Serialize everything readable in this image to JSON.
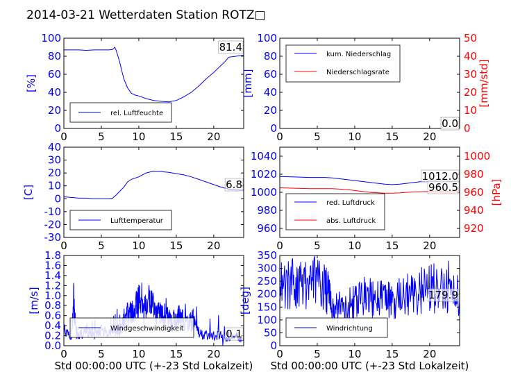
{
  "title": "2014-03-21 Wetterdaten Station ROTZ□",
  "colors": {
    "primary": "#0000ff",
    "secondary": "#ff0000",
    "axis": "#000000"
  },
  "chart_data": [
    {
      "id": "humidity",
      "type": "line",
      "xlim": [
        0,
        24
      ],
      "ylim": [
        0,
        100
      ],
      "xticks": [
        0,
        5,
        10,
        15,
        20
      ],
      "yticks": [
        0,
        20,
        40,
        60,
        80,
        100
      ],
      "ylabel": "[%]",
      "xlabel": "",
      "legend": {
        "placement": "bottom-left",
        "entries": [
          "rel. Luftfeuchte"
        ]
      },
      "current_value": "81.4",
      "series": [
        {
          "name": "rel. Luftfeuchte",
          "color": "#0000ff",
          "axis": "left",
          "x": [
            0,
            1,
            2,
            3,
            4,
            5,
            6,
            6.5,
            6.8,
            7,
            7.4,
            8,
            8.5,
            9,
            9.5,
            10,
            11,
            12,
            13,
            14,
            15,
            16,
            17,
            18,
            19,
            20,
            20.5,
            21,
            21.5,
            22,
            23,
            24
          ],
          "y": [
            87,
            87,
            87,
            86.5,
            87,
            87,
            87,
            87.5,
            90,
            86,
            75,
            55,
            45,
            39,
            37,
            36,
            33,
            31,
            30,
            29.5,
            31,
            35,
            40,
            47,
            55,
            62,
            66,
            70,
            74,
            79,
            80,
            81.4
          ]
        }
      ]
    },
    {
      "id": "precipitation",
      "type": "line",
      "xlim": [
        0,
        24
      ],
      "ylim": [
        0,
        100
      ],
      "y2lim": [
        0,
        50
      ],
      "xticks": [
        0,
        5,
        10,
        15,
        20
      ],
      "yticks": [
        0,
        20,
        40,
        60,
        80,
        100
      ],
      "y2ticks": [
        0,
        10,
        20,
        30,
        40,
        50
      ],
      "ylabel": "[mm]",
      "y2label": "[mm/std]",
      "xlabel": "",
      "legend": {
        "placement": "top-left",
        "entries": [
          "kum. Niederschlag",
          "Niederschlagsrate"
        ]
      },
      "current_values": [
        "0.0",
        "0.0"
      ],
      "series": [
        {
          "name": "kum. Niederschlag",
          "color": "#0000ff",
          "axis": "left",
          "x": [
            0,
            24
          ],
          "y": [
            0,
            0
          ]
        },
        {
          "name": "Niederschlagsrate",
          "color": "#ff0000",
          "axis": "right",
          "x": [
            0,
            24
          ],
          "y": [
            0,
            0
          ]
        }
      ]
    },
    {
      "id": "temperature",
      "type": "line",
      "xlim": [
        0,
        24
      ],
      "ylim": [
        -30,
        40
      ],
      "xticks": [
        0,
        5,
        10,
        15,
        20
      ],
      "yticks": [
        -30,
        -20,
        -10,
        0,
        10,
        20,
        30,
        40
      ],
      "ylabel": "[C]",
      "xlabel": "",
      "legend": {
        "placement": "bottom-left",
        "entries": [
          "Lufttemperatur"
        ]
      },
      "current_value": "6.8",
      "series": [
        {
          "name": "Lufttemperatur",
          "color": "#0000ff",
          "axis": "left",
          "x": [
            0,
            1,
            2,
            3,
            4,
            5,
            6,
            6.5,
            7,
            7.5,
            8,
            8.5,
            9,
            10,
            11,
            12,
            13,
            14,
            15,
            16,
            17,
            18,
            19,
            20,
            21,
            22,
            23,
            24
          ],
          "y": [
            1.5,
            1,
            0.5,
            0.5,
            0,
            0,
            0,
            0.5,
            3,
            6,
            9,
            13,
            15,
            17,
            20,
            21.5,
            21,
            20.5,
            19.5,
            18.5,
            17,
            15,
            13,
            11,
            9,
            7.5,
            6.8,
            6.8
          ]
        }
      ]
    },
    {
      "id": "pressure",
      "type": "line",
      "xlim": [
        0,
        24
      ],
      "ylim": [
        950,
        1050
      ],
      "y2lim": [
        910,
        1010
      ],
      "xticks": [
        0,
        5,
        10,
        15,
        20
      ],
      "yticks": [
        960,
        980,
        1000,
        1020,
        1040
      ],
      "y2ticks": [
        920,
        940,
        960,
        980,
        1000
      ],
      "ylabel": "",
      "y2label": "[hPa]",
      "xlabel": "",
      "legend": {
        "placement": "bottom-left",
        "entries": [
          "red. Luftdruck",
          "abs. Luftdruck"
        ]
      },
      "current_values": [
        "1012.0",
        "960.5"
      ],
      "series": [
        {
          "name": "red. Luftdruck",
          "color": "#0000ff",
          "axis": "left",
          "x": [
            0,
            2,
            4,
            6,
            7,
            8,
            9,
            10,
            11,
            12,
            13,
            14,
            15,
            16,
            17,
            18,
            19,
            20,
            21,
            22,
            23,
            24
          ],
          "y": [
            1017.5,
            1017,
            1016.5,
            1016.5,
            1016,
            1015,
            1014,
            1013,
            1012,
            1011,
            1010,
            1009,
            1008.5,
            1009,
            1010,
            1011,
            1012,
            1012.3,
            1012,
            1012,
            1012,
            1012
          ]
        },
        {
          "name": "abs. Luftdruck",
          "color": "#ff0000",
          "axis": "right",
          "x": [
            0,
            2,
            4,
            6,
            7,
            8,
            9,
            10,
            11,
            12,
            13,
            14,
            15,
            16,
            17,
            18,
            19,
            20,
            21,
            22,
            23,
            24
          ],
          "y": [
            965,
            964.5,
            964,
            964,
            964,
            963.5,
            963,
            962,
            961,
            960,
            959.5,
            959,
            959,
            959.3,
            960,
            960.5,
            960.7,
            960.8,
            960.5,
            960.5,
            960.5,
            960.5
          ]
        }
      ]
    },
    {
      "id": "windspeed",
      "type": "line",
      "xlim": [
        0,
        24
      ],
      "ylim": [
        0,
        1.8
      ],
      "xticks": [
        0,
        5,
        10,
        15,
        20
      ],
      "yticks": [
        0.0,
        0.2,
        0.4,
        0.6,
        0.8,
        1.0,
        1.2,
        1.4,
        1.6,
        1.8
      ],
      "ylabel": "[m/s]",
      "xlabel": "Std 00:00:00 UTC (+-23 Std Lokalzeit)",
      "legend": {
        "placement": "bottom-left",
        "entries": [
          "Windgeschwindigkeit"
        ]
      },
      "current_value": "0.1",
      "series": [
        {
          "name": "Windgeschwindigkeit",
          "color": "#0000ff",
          "axis": "left",
          "noise": true,
          "x": [
            0,
            1,
            1.3,
            1.6,
            2,
            3,
            4,
            5,
            6,
            6.5,
            7,
            7.5,
            8,
            8.5,
            9,
            9.5,
            10,
            10.5,
            11,
            11.5,
            12,
            12.5,
            13,
            13.5,
            14,
            14.5,
            15,
            15.5,
            16,
            16.5,
            17,
            17.5,
            18,
            19,
            20,
            21,
            22,
            23,
            24
          ],
          "y": [
            0.3,
            0.2,
            0.9,
            0.3,
            0.2,
            0.3,
            0.2,
            0.3,
            0.25,
            0.3,
            0.3,
            0.3,
            0.5,
            0.7,
            0.6,
            0.8,
            0.9,
            0.8,
            0.7,
            0.9,
            0.7,
            0.6,
            0.6,
            0.5,
            0.6,
            0.5,
            0.5,
            0.6,
            0.5,
            0.4,
            0.5,
            0.6,
            0.3,
            0.2,
            0.2,
            0.2,
            0.1,
            0.2,
            0.1
          ]
        }
      ]
    },
    {
      "id": "winddirection",
      "type": "line",
      "xlim": [
        0,
        24
      ],
      "ylim": [
        0,
        350
      ],
      "xticks": [
        0,
        5,
        10,
        15,
        20
      ],
      "yticks": [
        0,
        50,
        100,
        150,
        200,
        250,
        300,
        350
      ],
      "ylabel": "[deg]",
      "xlabel": "Std 00:00:00 UTC (+-23 Std Lokalzeit)",
      "legend": {
        "placement": "bottom-left",
        "entries": [
          "Windrichtung"
        ]
      },
      "current_value": "179.9",
      "series": [
        {
          "name": "Windrichtung",
          "color": "#0000ff",
          "axis": "left",
          "noise": true,
          "x": [
            0,
            1,
            2,
            3,
            4,
            5,
            6,
            6.5,
            7,
            7.5,
            8,
            9,
            10,
            11,
            12,
            13,
            14,
            15,
            16,
            17,
            18,
            19,
            20,
            21,
            22,
            23,
            24
          ],
          "y": [
            250,
            230,
            240,
            220,
            250,
            240,
            230,
            200,
            150,
            120,
            150,
            160,
            170,
            185,
            190,
            180,
            180,
            185,
            190,
            200,
            210,
            215,
            220,
            225,
            225,
            230,
            180
          ]
        }
      ]
    }
  ]
}
